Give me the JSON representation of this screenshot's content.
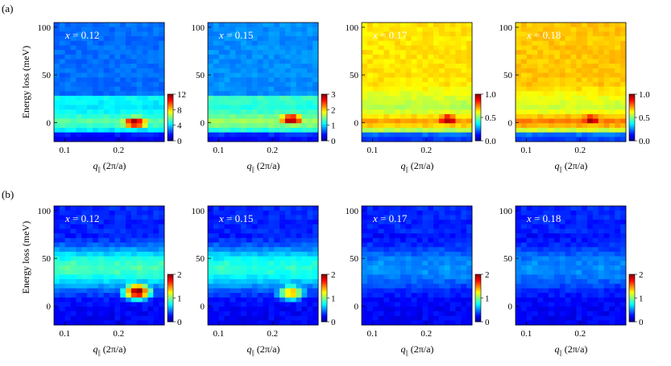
{
  "figure": {
    "row_labels": [
      "(a)",
      "(b)"
    ],
    "ylabel": "Energy loss (meV)",
    "xlabel_var": "q",
    "xlabel_sub": "||",
    "xlabel_unit": " (2π/a)"
  },
  "chart_data": [
    {
      "type": "heatmap",
      "row": "a",
      "panel_label": "x = 0.12",
      "inset_var": "x",
      "inset_val": "= 0.12",
      "xlim": [
        0.08,
        0.285
      ],
      "ylim": [
        -20,
        105
      ],
      "xticks": [
        0.1,
        0.2
      ],
      "xtick_labels": [
        "0.1",
        "0.2"
      ],
      "yticks": [
        0,
        50,
        100
      ],
      "ytick_labels": [
        "0",
        "50",
        "100"
      ],
      "colorbar": {
        "range": [
          0,
          12
        ],
        "ticks": [
          0,
          4,
          8,
          12
        ],
        "tick_labels": [
          "0",
          "4",
          "8",
          "12"
        ],
        "colormap": "jet"
      },
      "features": [
        {
          "kind": "elastic_peak",
          "q": 0.23,
          "energy": 0,
          "intensity": 12
        }
      ],
      "level": 0.42
    },
    {
      "type": "heatmap",
      "row": "a",
      "panel_label": "x = 0.15",
      "inset_var": "x",
      "inset_val": "= 0.15",
      "xlim": [
        0.08,
        0.285
      ],
      "ylim": [
        -20,
        105
      ],
      "xticks": [
        0.1,
        0.2
      ],
      "xtick_labels": [
        "0.1",
        "0.2"
      ],
      "yticks": [
        0,
        50,
        100
      ],
      "ytick_labels": [
        "0",
        "50",
        "100"
      ],
      "colorbar": {
        "range": [
          0,
          3
        ],
        "ticks": [
          0,
          1,
          2,
          3
        ],
        "tick_labels": [
          "0",
          "1",
          "2",
          "3"
        ],
        "colormap": "jet"
      },
      "features": [
        {
          "kind": "elastic_peak",
          "q": 0.235,
          "energy": 3,
          "intensity": 3
        }
      ],
      "level": 0.48
    },
    {
      "type": "heatmap",
      "row": "a",
      "panel_label": "x = 0.17",
      "inset_var": "x",
      "inset_val": "= 0.17",
      "xlim": [
        0.08,
        0.285
      ],
      "ylim": [
        -20,
        105
      ],
      "xticks": [
        0.1,
        0.2
      ],
      "xtick_labels": [
        "0.1",
        "0.2"
      ],
      "yticks": [
        0,
        50,
        100
      ],
      "ytick_labels": [
        "0",
        "50",
        "100"
      ],
      "colorbar": {
        "range": [
          0,
          1
        ],
        "ticks": [
          0,
          0.5,
          1
        ],
        "tick_labels": [
          "0.0",
          "0.5",
          "1.0"
        ],
        "colormap": "jet"
      },
      "features": [
        {
          "kind": "elastic_peak",
          "q": 0.24,
          "energy": 3,
          "intensity": 1.0
        }
      ],
      "level": 0.65
    },
    {
      "type": "heatmap",
      "row": "a",
      "panel_label": "x = 0.18",
      "inset_var": "x",
      "inset_val": "= 0.18",
      "xlim": [
        0.08,
        0.285
      ],
      "ylim": [
        -20,
        105
      ],
      "xticks": [
        0.1,
        0.2
      ],
      "xtick_labels": [
        "0.1",
        "0.2"
      ],
      "yticks": [
        0,
        50,
        100
      ],
      "ytick_labels": [
        "0",
        "50",
        "100"
      ],
      "colorbar": {
        "range": [
          0,
          1
        ],
        "ticks": [
          0,
          0.5,
          1
        ],
        "tick_labels": [
          "0.0",
          "0.5",
          "1.0"
        ],
        "colormap": "jet"
      },
      "features": [
        {
          "kind": "elastic_peak",
          "q": 0.22,
          "energy": 3,
          "intensity": 1.0
        }
      ],
      "level": 0.68
    },
    {
      "type": "heatmap",
      "row": "b",
      "panel_label": "x = 0.12",
      "inset_var": "x",
      "inset_val": "= 0.12",
      "xlim": [
        0.08,
        0.285
      ],
      "ylim": [
        -20,
        105
      ],
      "xticks": [
        0.1,
        0.2
      ],
      "xtick_labels": [
        "0.1",
        "0.2"
      ],
      "yticks": [
        0,
        50,
        100
      ],
      "ytick_labels": [
        "0",
        "50",
        "100"
      ],
      "colorbar": {
        "range": [
          0,
          2
        ],
        "ticks": [
          0,
          1,
          2
        ],
        "tick_labels": [
          "0",
          "1",
          "2"
        ],
        "colormap": "jet"
      },
      "features": [
        {
          "kind": "inelastic_peak",
          "q": 0.235,
          "energy": 15,
          "intensity": 2.0
        }
      ],
      "level": 0.55
    },
    {
      "type": "heatmap",
      "row": "b",
      "panel_label": "x = 0.15",
      "inset_var": "x",
      "inset_val": "= 0.15",
      "xlim": [
        0.08,
        0.285
      ],
      "ylim": [
        -20,
        105
      ],
      "xticks": [
        0.1,
        0.2
      ],
      "xtick_labels": [
        "0.1",
        "0.2"
      ],
      "yticks": [
        0,
        50,
        100
      ],
      "ytick_labels": [
        "0",
        "50",
        "100"
      ],
      "colorbar": {
        "range": [
          0,
          2
        ],
        "ticks": [
          0,
          1,
          2
        ],
        "tick_labels": [
          "0",
          "1",
          "2"
        ],
        "colormap": "jet"
      },
      "features": [
        {
          "kind": "inelastic_peak",
          "q": 0.235,
          "energy": 14,
          "intensity": 1.4
        }
      ],
      "level": 0.5
    },
    {
      "type": "heatmap",
      "row": "b",
      "panel_label": "x = 0.17",
      "inset_var": "x",
      "inset_val": "= 0.17",
      "xlim": [
        0.08,
        0.285
      ],
      "ylim": [
        -20,
        105
      ],
      "xticks": [
        0.1,
        0.2
      ],
      "xtick_labels": [
        "0.1",
        "0.2"
      ],
      "yticks": [
        0,
        50,
        100
      ],
      "ytick_labels": [
        "0",
        "50",
        "100"
      ],
      "colorbar": {
        "range": [
          0,
          2
        ],
        "ticks": [
          0,
          1,
          2
        ],
        "tick_labels": [
          "0",
          "1",
          "2"
        ],
        "colormap": "jet"
      },
      "features": [
        {
          "kind": "broad",
          "q": 0.23,
          "energy": 35,
          "intensity": 0.6
        }
      ],
      "level": 0.25
    },
    {
      "type": "heatmap",
      "row": "b",
      "panel_label": "x = 0.18",
      "inset_var": "x",
      "inset_val": "= 0.18",
      "xlim": [
        0.08,
        0.285
      ],
      "ylim": [
        -20,
        105
      ],
      "xticks": [
        0.1,
        0.2
      ],
      "xtick_labels": [
        "0.1",
        "0.2"
      ],
      "yticks": [
        0,
        50,
        100
      ],
      "ytick_labels": [
        "0",
        "50",
        "100"
      ],
      "colorbar": {
        "range": [
          0,
          2
        ],
        "ticks": [
          0,
          1,
          2
        ],
        "tick_labels": [
          "0",
          "1",
          "2"
        ],
        "colormap": "jet"
      },
      "features": [
        {
          "kind": "broad",
          "q": 0.23,
          "energy": 35,
          "intensity": 0.55
        }
      ],
      "level": 0.24
    }
  ]
}
